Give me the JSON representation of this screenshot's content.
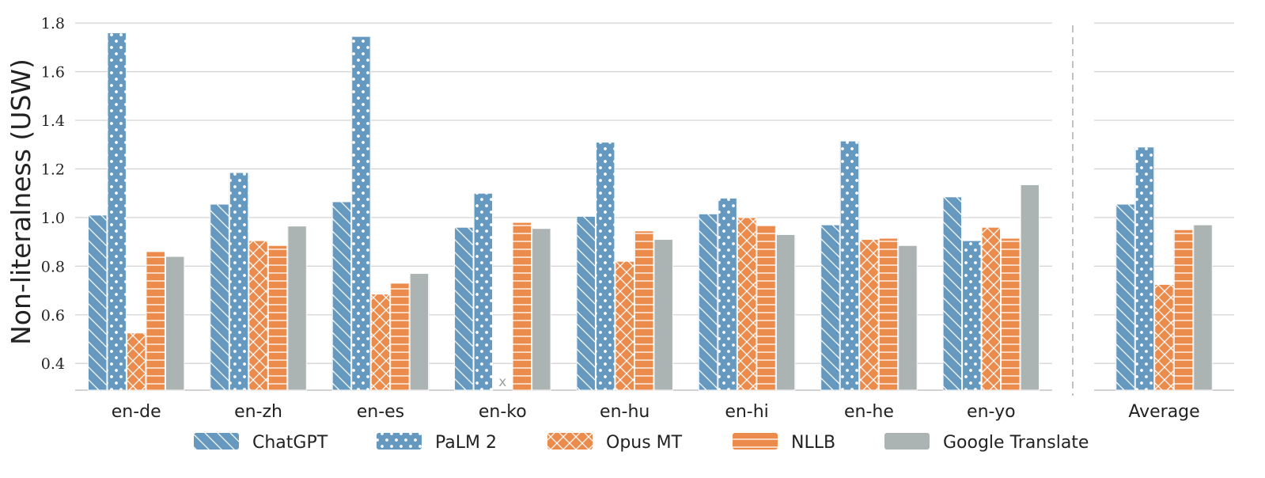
{
  "chart_data": {
    "type": "bar",
    "ylabel": "Non-literalness (USW)",
    "ylim": [
      0.29,
      1.82
    ],
    "yticks": [
      0.4,
      0.6,
      0.8,
      1.0,
      1.2,
      1.4,
      1.6,
      1.8
    ],
    "grid": true,
    "legend_position": "bottom",
    "categories": [
      "en-de",
      "en-zh",
      "en-es",
      "en-ko",
      "en-hu",
      "en-hi",
      "en-he",
      "en-yo"
    ],
    "average_panel": {
      "category": "Average"
    },
    "missing_marker": "x",
    "series": [
      {
        "name": "ChatGPT",
        "color": "#6599c0",
        "hatch": "diagonal",
        "values": [
          1.01,
          1.055,
          1.065,
          0.96,
          1.005,
          1.015,
          0.97,
          1.085
        ],
        "average": 1.055
      },
      {
        "name": "PaLM 2",
        "color": "#6599c0",
        "hatch": "dots",
        "values": [
          1.76,
          1.185,
          1.745,
          1.1,
          1.31,
          1.08,
          1.315,
          0.905
        ],
        "average": 1.29
      },
      {
        "name": "Opus MT",
        "color": "#eb8c4d",
        "hatch": "crosshatch",
        "values": [
          0.525,
          0.905,
          0.685,
          null,
          0.82,
          1.0,
          0.91,
          0.96
        ],
        "average": 0.725
      },
      {
        "name": "NLLB",
        "color": "#eb8c4d",
        "hatch": "horizontal",
        "values": [
          0.86,
          0.885,
          0.73,
          0.98,
          0.945,
          0.97,
          0.915,
          0.915
        ],
        "average": 0.95
      },
      {
        "name": "Google Translate",
        "color": "#acb3b3",
        "hatch": "none",
        "values": [
          0.84,
          0.965,
          0.77,
          0.955,
          0.91,
          0.93,
          0.885,
          1.135
        ],
        "average": 0.97
      }
    ]
  }
}
